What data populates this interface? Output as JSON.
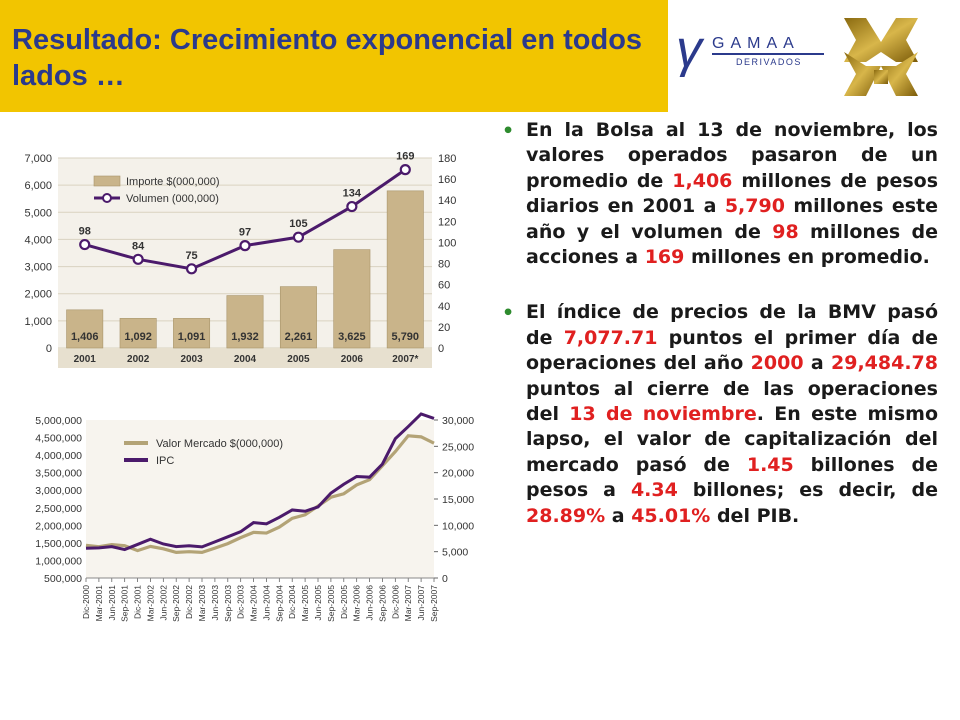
{
  "title": "Resultado: Crecimiento exponencial en todos lados …",
  "logo": {
    "brand": "GAMAA",
    "subtitle": "DERIVADOS",
    "brand_color": "#2b3a8c",
    "accent_color": "#b8860b"
  },
  "colors": {
    "title_band": "#f2c500",
    "title_text": "#2b3a8c",
    "bullet_dot": "#2e8b2e",
    "highlight": "#e02020",
    "bar_fill": "#c9b48a",
    "line_ipc": "#4b1a6b",
    "line_valor": "#b3a376"
  },
  "bullets": [
    {
      "segments": [
        "En la Bolsa al 13 de noviembre, los valores operados pasaron de un promedio de ",
        "1,406",
        " millones de pesos diarios en 2001 a ",
        "5,790",
        " millones este año y el volumen de ",
        "98",
        " millones de acciones a ",
        "169",
        " millones en promedio."
      ]
    },
    {
      "segments": [
        "El índice de precios de la BMV pasó de ",
        "7,077.71",
        " puntos el primer día de operaciones del año ",
        "2000",
        " a ",
        "29,484.78",
        " puntos al cierre de las operaciones del ",
        "13 de noviembre",
        ". En este mismo lapso, el valor de capitalización del mercado pasó de ",
        "1.45",
        " billones de pesos a ",
        "4.34",
        " billones; es decir, de ",
        "28.89%",
        " a ",
        "45.01%",
        " del PIB."
      ]
    }
  ],
  "chart_data": [
    {
      "type": "bar",
      "categories": [
        "2001",
        "2002",
        "2003",
        "2004",
        "2005",
        "2006",
        "2007*"
      ],
      "series": [
        {
          "name": "Importe $(000,000)",
          "values": [
            1406,
            1092,
            1091,
            1932,
            2261,
            3625,
            5790
          ],
          "color": "#c9b48a",
          "axis": "left"
        },
        {
          "name": "Volumen (000,000)",
          "type": "line",
          "values": [
            98,
            84,
            75,
            97,
            105,
            134,
            169
          ],
          "color": "#4b1a6b",
          "axis": "right"
        }
      ],
      "bar_labels": [
        "1,406",
        "1,092",
        "1,091",
        "1,932",
        "2,261",
        "3,625",
        "5,790"
      ],
      "line_labels": [
        "98",
        "84",
        "75",
        "97",
        "105",
        "134",
        "169"
      ],
      "yticks_left": [
        "0",
        "1,000",
        "2,000",
        "3,000",
        "4,000",
        "5,000",
        "6,000",
        "7,000"
      ],
      "yticks_right": [
        "0",
        "20",
        "40",
        "60",
        "80",
        "100",
        "120",
        "140",
        "160",
        "180"
      ],
      "ylim_left": [
        0,
        7000
      ],
      "ylim_right": [
        0,
        180
      ],
      "grid": true,
      "legend": "top-left"
    },
    {
      "type": "line",
      "xticks": [
        "Dic-2000",
        "Mar-2001",
        "Jun-2001",
        "Sep-2001",
        "Dic-2001",
        "Mar-2002",
        "Jun-2002",
        "Sep-2002",
        "Dic-2002",
        "Mar-2003",
        "Jun-2003",
        "Sep-2003",
        "Dic-2003",
        "Mar-2004",
        "Jun-2004",
        "Sep-2004",
        "Dic-2004",
        "Mar-2005",
        "Jun-2005",
        "Sep-2005",
        "Dic-2005",
        "Mar-2006",
        "Jun-2006",
        "Sep-2006",
        "Dic-2006",
        "Mar-2007",
        "Jun-2007",
        "Sep-2007"
      ],
      "series": [
        {
          "name": "Valor Mercado $(000,000)",
          "color": "#b3a376",
          "axis": "left",
          "values": [
            1430000,
            1390000,
            1450000,
            1420000,
            1280000,
            1400000,
            1330000,
            1230000,
            1250000,
            1230000,
            1350000,
            1480000,
            1650000,
            1800000,
            1780000,
            1950000,
            2200000,
            2300000,
            2550000,
            2800000,
            2900000,
            3150000,
            3300000,
            3700000,
            4100000,
            4550000,
            4520000,
            4340000
          ]
        },
        {
          "name": "IPC",
          "color": "#4b1a6b",
          "axis": "right",
          "values": [
            5652,
            5727,
            5946,
            5403,
            6372,
            7361,
            6460,
            5961,
            6127,
            5914,
            6860,
            7822,
            8795,
            10518,
            10281,
            11518,
            12918,
            12676,
            13486,
            16120,
            17803,
            19273,
            19147,
            21647,
            26448,
            28748,
            31151,
            30296
          ]
        }
      ],
      "yticks_left": [
        "500,000",
        "1,000,000",
        "1,500,000",
        "2,000,000",
        "2,500,000",
        "3,000,000",
        "3,500,000",
        "4,000,000",
        "4,500,000",
        "5,000,000"
      ],
      "yticks_right": [
        "0",
        "5,000",
        "10,000",
        "15,000",
        "20,000",
        "25,000",
        "30,000"
      ],
      "ylim_left": [
        500000,
        5000000
      ],
      "ylim_right": [
        0,
        30000
      ],
      "grid": false,
      "legend": "top-left"
    }
  ]
}
